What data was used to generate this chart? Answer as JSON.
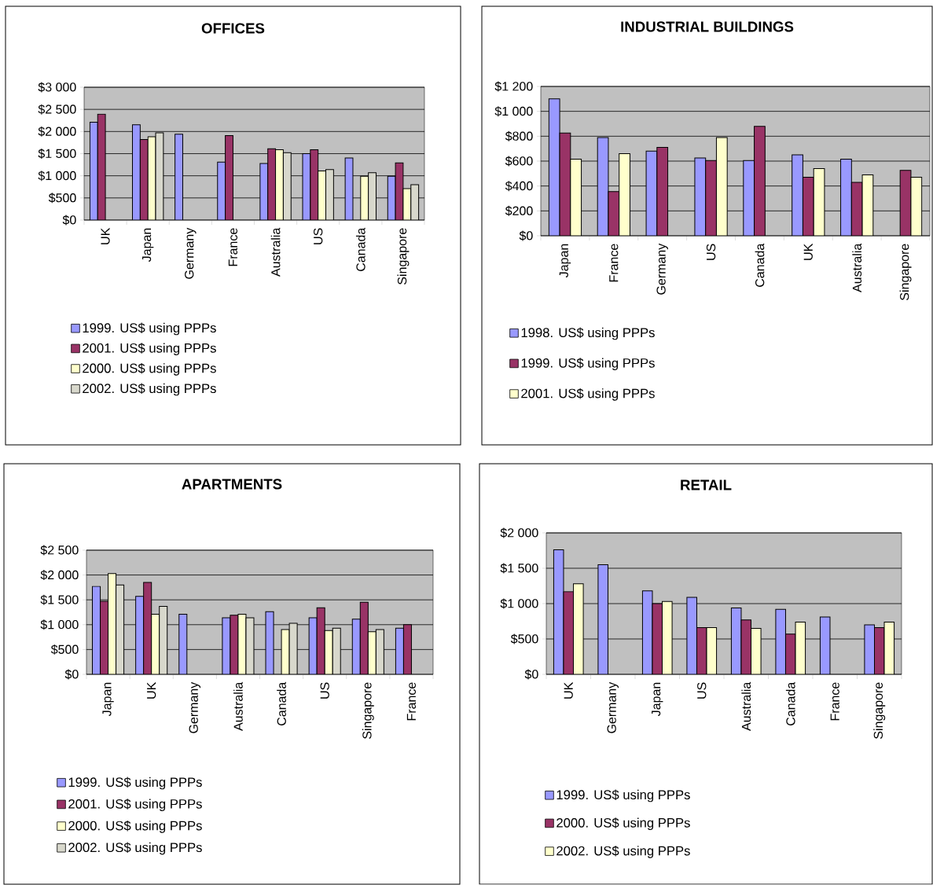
{
  "chart_data": [
    {
      "type": "bar",
      "title": "OFFICES",
      "categories": [
        "UK",
        "Japan",
        "Germany",
        "France",
        "Australia",
        "US",
        "Canada",
        "Singapore"
      ],
      "series": [
        {
          "name": "1999. US$ using PPPs",
          "color": "#9999ff",
          "values": [
            2210,
            2150,
            1940,
            1310,
            1280,
            1500,
            1400,
            990
          ]
        },
        {
          "name": "2001. US$ using PPPs",
          "color": "#993366",
          "values": [
            2390,
            1820,
            null,
            1910,
            1610,
            1590,
            null,
            1290
          ]
        },
        {
          "name": "2000. US$ using PPPs",
          "color": "#ffffcc",
          "values": [
            null,
            1880,
            null,
            null,
            1590,
            1110,
            990,
            710
          ]
        },
        {
          "name": "2002. US$ using PPPs",
          "color": "#d8d8cc",
          "values": [
            null,
            1970,
            null,
            null,
            1520,
            1140,
            1070,
            800
          ]
        }
      ],
      "ylim": [
        0,
        3000
      ],
      "yticks": [
        {
          "value": 0,
          "label": "$0"
        },
        {
          "value": 500,
          "label": "$500"
        },
        {
          "value": 1000,
          "label": "$1 000"
        },
        {
          "value": 1500,
          "label": "$1 500"
        },
        {
          "value": 2000,
          "label": "$2 000"
        },
        {
          "value": 2500,
          "label": "$2 500"
        },
        {
          "value": 3000,
          "label": "$3 000"
        }
      ],
      "grid": "y",
      "legend": "bottom"
    },
    {
      "type": "bar",
      "title": "INDUSTRIAL BUILDINGS",
      "categories": [
        "Japan",
        "France",
        "Germany",
        "US",
        "Canada",
        "UK",
        "Australia",
        "Singapore"
      ],
      "series": [
        {
          "name": "1998. US$ using PPPs",
          "color": "#9999ff",
          "values": [
            1100,
            790,
            680,
            625,
            605,
            650,
            615,
            null
          ]
        },
        {
          "name": "1999. US$ using PPPs",
          "color": "#993366",
          "values": [
            825,
            355,
            710,
            605,
            880,
            470,
            430,
            525
          ]
        },
        {
          "name": "2001. US$ using PPPs",
          "color": "#ffffcc",
          "values": [
            615,
            660,
            null,
            790,
            null,
            540,
            490,
            470
          ]
        }
      ],
      "ylim": [
        0,
        1200
      ],
      "yticks": [
        {
          "value": 0,
          "label": "$0"
        },
        {
          "value": 200,
          "label": "$200"
        },
        {
          "value": 400,
          "label": "$400"
        },
        {
          "value": 600,
          "label": "$600"
        },
        {
          "value": 800,
          "label": "$800"
        },
        {
          "value": 1000,
          "label": "$1 000"
        },
        {
          "value": 1200,
          "label": "$1 200"
        }
      ],
      "grid": "y",
      "legend": "bottom"
    },
    {
      "type": "bar",
      "title": "APARTMENTS",
      "categories": [
        "Japan",
        "UK",
        "Germany",
        "Australia",
        "Canada",
        "US",
        "Singapore",
        "France"
      ],
      "series": [
        {
          "name": "1999. US$ using PPPs",
          "color": "#9999ff",
          "values": [
            1770,
            1570,
            1210,
            1140,
            1260,
            1140,
            1110,
            930
          ]
        },
        {
          "name": "2001. US$ using PPPs",
          "color": "#993366",
          "values": [
            1470,
            1850,
            null,
            1190,
            null,
            1340,
            1450,
            1000
          ]
        },
        {
          "name": "2000. US$ using PPPs",
          "color": "#ffffcc",
          "values": [
            2030,
            1210,
            null,
            1210,
            900,
            880,
            860,
            null
          ]
        },
        {
          "name": "2002. US$ using PPPs",
          "color": "#d8d8cc",
          "values": [
            1800,
            1370,
            null,
            1140,
            1030,
            930,
            900,
            null
          ]
        }
      ],
      "ylim": [
        0,
        2500
      ],
      "yticks": [
        {
          "value": 0,
          "label": "$0"
        },
        {
          "value": 500,
          "label": "$500"
        },
        {
          "value": 1000,
          "label": "$1 000"
        },
        {
          "value": 1500,
          "label": "$1 500"
        },
        {
          "value": 2000,
          "label": "$2 000"
        },
        {
          "value": 2500,
          "label": "$2 500"
        }
      ],
      "grid": "y",
      "legend": "bottom"
    },
    {
      "type": "bar",
      "title": "RETAIL",
      "categories": [
        "UK",
        "Germany",
        "Japan",
        "US",
        "Australia",
        "Canada",
        "France",
        "Singapore"
      ],
      "series": [
        {
          "name": "1999. US$ using PPPs",
          "color": "#9999ff",
          "values": [
            1760,
            1550,
            1180,
            1090,
            940,
            920,
            810,
            700
          ]
        },
        {
          "name": "2000. US$ using PPPs",
          "color": "#993366",
          "values": [
            1170,
            null,
            1000,
            660,
            770,
            570,
            null,
            660
          ]
        },
        {
          "name": "2002. US$ using PPPs",
          "color": "#ffffcc",
          "values": [
            1280,
            null,
            1030,
            660,
            650,
            740,
            null,
            740
          ]
        }
      ],
      "ylim": [
        0,
        2000
      ],
      "yticks": [
        {
          "value": 0,
          "label": "$0"
        },
        {
          "value": 500,
          "label": "$500"
        },
        {
          "value": 1000,
          "label": "$1 000"
        },
        {
          "value": 1500,
          "label": "$1 500"
        },
        {
          "value": 2000,
          "label": "$2 000"
        }
      ],
      "grid": "y",
      "legend": "bottom"
    }
  ]
}
